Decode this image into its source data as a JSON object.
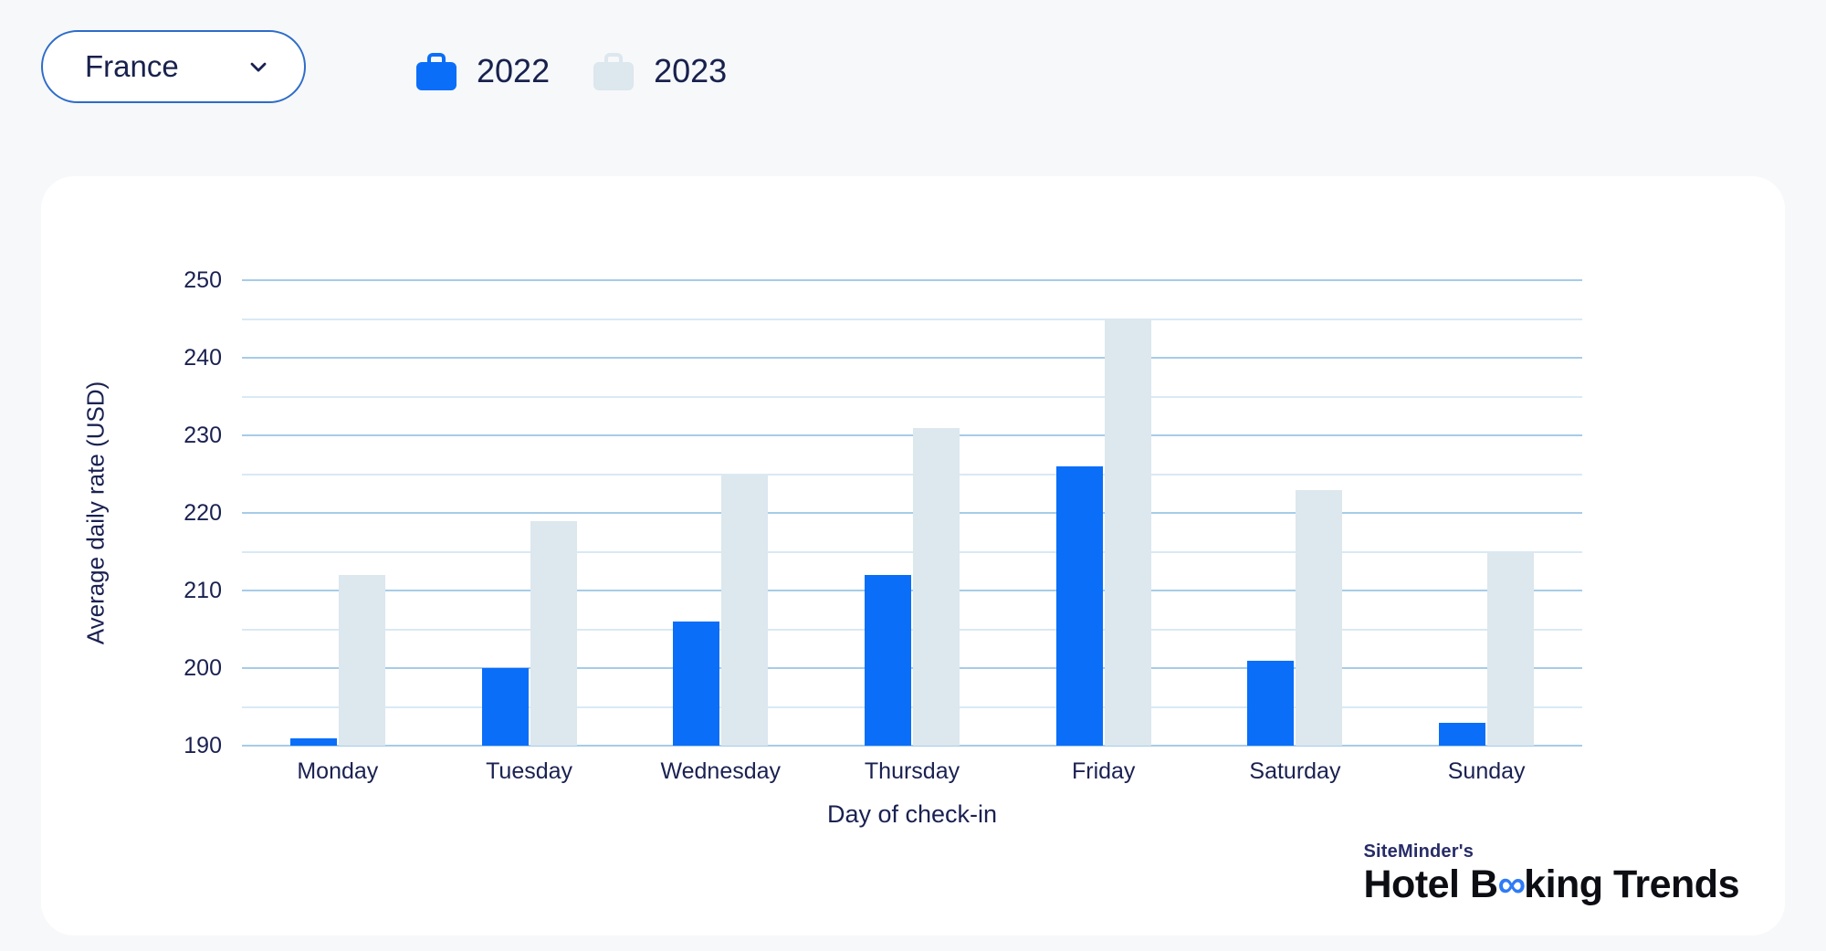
{
  "controls": {
    "country_select": {
      "value": "France"
    },
    "legend": [
      {
        "label": "2022",
        "icon": "briefcase-icon",
        "color": "#0a6ef8"
      },
      {
        "label": "2023",
        "icon": "briefcase-icon",
        "color": "#dce7ee"
      }
    ]
  },
  "chart_data": {
    "type": "bar",
    "categories": [
      "Monday",
      "Tuesday",
      "Wednesday",
      "Thursday",
      "Friday",
      "Saturday",
      "Sunday"
    ],
    "series": [
      {
        "name": "2022",
        "color": "#0a6ef8",
        "values": [
          191,
          200,
          206,
          212,
          226,
          201,
          193
        ]
      },
      {
        "name": "2023",
        "color": "#dce7ee",
        "values": [
          212,
          219,
          225,
          231,
          245,
          223,
          215
        ]
      }
    ],
    "xlabel": "Day of check-in",
    "ylabel": "Average daily rate (USD)",
    "ylim": [
      190,
      250
    ],
    "yticks": [
      190,
      200,
      210,
      220,
      230,
      240,
      250
    ],
    "grid_minor_step": 5,
    "grid": true,
    "grid_major_color": "#a6cce8",
    "grid_minor_color": "#d9e9f5",
    "legend_position": "top-left"
  },
  "logo": {
    "small": "SiteMinder's",
    "big_part1": "Hotel B",
    "big_infinity": "∞",
    "big_part2": "king Trends"
  }
}
